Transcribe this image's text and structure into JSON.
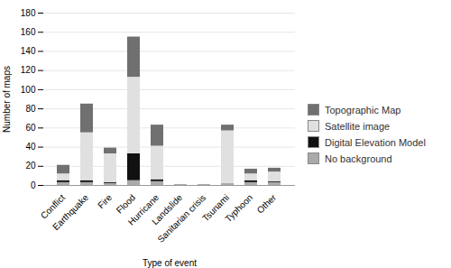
{
  "chart_data": {
    "type": "bar",
    "stacked": true,
    "xlabel": "Type of event",
    "ylabel": "Number of maps",
    "categories": [
      "Conflict",
      "Earthquake",
      "Fire",
      "Flood",
      "Hurricane",
      "Landslide",
      "Sanitarian crisis",
      "Tsunami",
      "Typhoon",
      "Other"
    ],
    "series": [
      {
        "name": "No background",
        "color": "#aaaaaa",
        "values": [
          3,
          3,
          2,
          5,
          4,
          1,
          1,
          2,
          3,
          3
        ]
      },
      {
        "name": "Digital Elevation Model",
        "color": "#111111",
        "values": [
          2,
          2,
          1,
          28,
          2,
          0,
          0,
          0,
          2,
          1
        ]
      },
      {
        "name": "Satellite image",
        "color": "#e0e0e0",
        "values": [
          7,
          50,
          30,
          80,
          35,
          0,
          0,
          55,
          7,
          10
        ]
      },
      {
        "name": "Topographic Map",
        "color": "#707070",
        "values": [
          9,
          30,
          6,
          42,
          22,
          0,
          0,
          6,
          5,
          4
        ]
      }
    ],
    "ylim": [
      0,
      180
    ],
    "yticks": [
      0,
      20,
      40,
      60,
      80,
      100,
      120,
      140,
      160,
      180
    ],
    "grid": true,
    "legend": "right"
  }
}
